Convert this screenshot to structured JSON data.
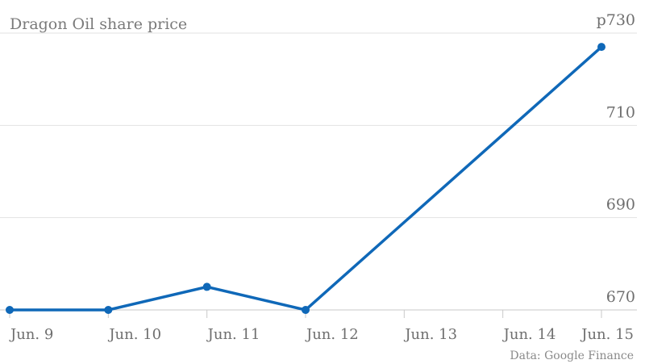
{
  "chart_data": {
    "type": "line",
    "title": "Dragon Oil share price",
    "x": [
      "Jun. 9",
      "Jun. 10",
      "Jun. 11",
      "Jun. 12",
      "Jun. 13",
      "Jun. 14",
      "Jun. 15"
    ],
    "series": [
      {
        "points": [
          {
            "x": "Jun. 9",
            "y": 670
          },
          {
            "x": "Jun. 10",
            "y": 670
          },
          {
            "x": "Jun. 11",
            "y": 675
          },
          {
            "x": "Jun. 12",
            "y": 670
          },
          {
            "x": "Jun. 15",
            "y": 727
          }
        ]
      }
    ],
    "ylim": [
      670,
      730
    ],
    "yticks": [
      670,
      690,
      710,
      730
    ],
    "ytick_labels": [
      "670",
      "690",
      "710",
      "p730"
    ],
    "grid": true,
    "source": "Data: Google Finance",
    "color": "#0f68b8"
  }
}
